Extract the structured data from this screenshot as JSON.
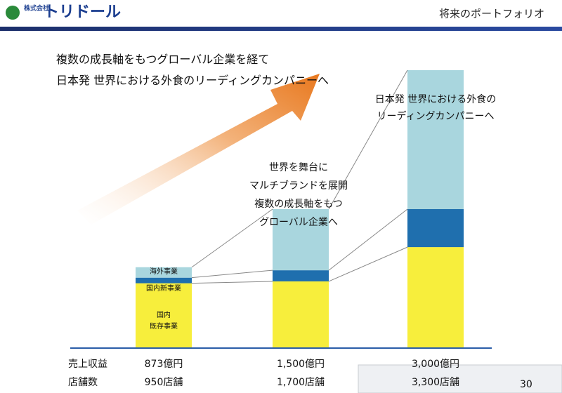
{
  "header": {
    "logo_small": "株式会社",
    "logo": "トリドール",
    "section": "将来のポートフォリオ",
    "page": "30"
  },
  "chart_data": {
    "type": "bar",
    "stacked": true,
    "headline": "複数の成長軸をもつグローバル企業を経て\n日本発 世界における外食のリーディングカンパニーへ",
    "annotations": [
      "世界を舞台に\nマルチブランドを展開\n複数の成長軸をもつ\nグローバル企業へ",
      "日本発 世界における外食の\nリーディングカンパニーへ"
    ],
    "categories": [
      null,
      null,
      null
    ],
    "series": [
      {
        "name": "国内\n既存事業",
        "color": "#f7ee3c",
        "values": [
          700,
          720,
          1090
        ]
      },
      {
        "name": "国内新事業",
        "color": "#1f6fae",
        "values": [
          60,
          120,
          410
        ]
      },
      {
        "name": "海外事業",
        "color": "#a9d6de",
        "values": [
          113,
          660,
          1500
        ]
      }
    ],
    "rows": [
      {
        "label": "売上収益",
        "values": [
          873,
          1500,
          3000
        ],
        "value_labels": [
          "873億円",
          "1,500億円",
          "3,000億円"
        ]
      },
      {
        "label": "店舗数",
        "values": [
          950,
          1700,
          3300
        ],
        "value_labels": [
          "950店舗",
          "1,700店舗",
          "3,300店舗"
        ]
      }
    ]
  }
}
